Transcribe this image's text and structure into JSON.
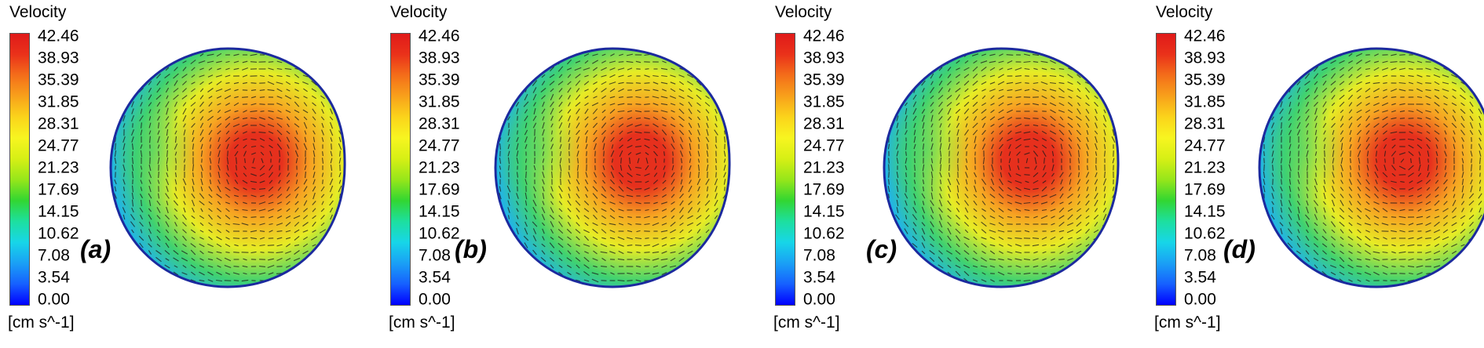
{
  "legend": {
    "title": "Velocity",
    "units": "[cm s^-1]",
    "ticks": [
      "42.46",
      "38.93",
      "35.39",
      "31.85",
      "28.31",
      "24.77",
      "21.23",
      "17.69",
      "14.15",
      "10.62",
      "7.08",
      "3.54",
      "0.00"
    ],
    "colors": [
      "#0000ff",
      "#1660ff",
      "#1aa0f5",
      "#17d6e8",
      "#1ddf9f",
      "#32d632",
      "#96e61a",
      "#d6ef15",
      "#f7f520",
      "#fbd41b",
      "#f8a11b",
      "#f46e1a",
      "#ea321a",
      "#e01a1a"
    ]
  },
  "panels": [
    {
      "label": "(a)"
    },
    {
      "label": "(b)"
    },
    {
      "label": "(c)"
    },
    {
      "label": "(d)"
    }
  ],
  "field_colors": {
    "outline": "#1c2a9e",
    "edge": "#21b4e8",
    "low": "#40d270",
    "mid": "#e7ec25",
    "high": "#f7a322",
    "peak": "#e6301d",
    "vector": "#1a1a1a"
  }
}
